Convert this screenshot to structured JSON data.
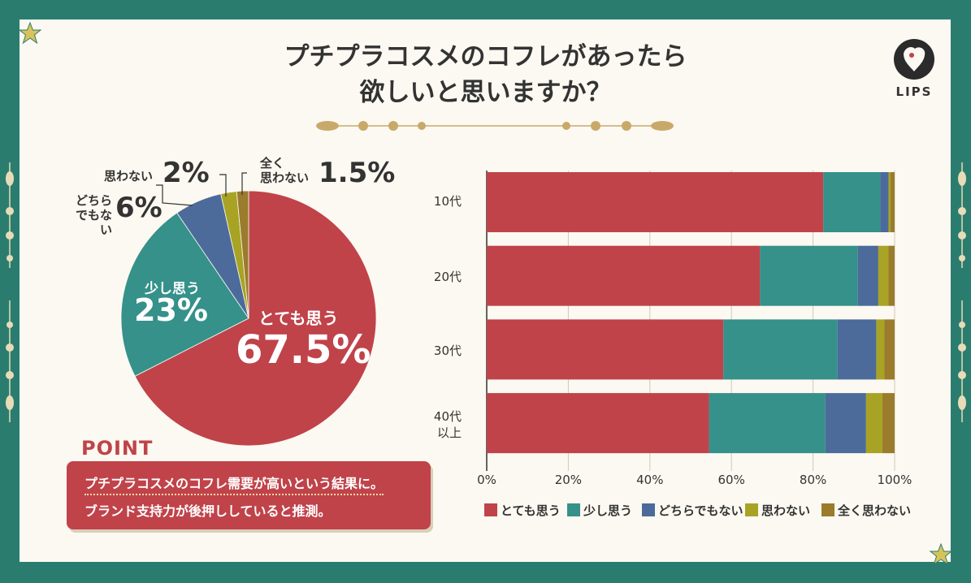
{
  "title": {
    "line1": "プチプラコスメのコフレがあったら",
    "line2": "欲しいと思いますか？"
  },
  "brand": {
    "logo_text": "LIPS"
  },
  "colors": {
    "frame": "#2a7d6e",
    "bg": "#fbf9f1",
    "very": "#c0434a",
    "little": "#35918a",
    "neutral": "#4c6b9b",
    "no": "#a8a324",
    "never": "#9b7b2c"
  },
  "pie_labels": {
    "very_label": "とても思う",
    "very_pct": "67.5%",
    "little_label": "少し思う",
    "little_pct": "23%",
    "neutral_label1": "どちら",
    "neutral_label2": "でもない",
    "neutral_pct": "6%",
    "no_label": "思わない",
    "no_pct": "2%",
    "never_label1": "全く",
    "never_label2": "思わない",
    "never_pct": "1.5%"
  },
  "point": {
    "title": "POINT",
    "line1": "プチプラコスメのコフレ需要が高いという結果に。",
    "line2": "ブランド支持力が後押ししていると推測。"
  },
  "bar_labels": {
    "g1": "10代",
    "g2": "20代",
    "g3a": "30代",
    "g4a": "40代",
    "g4b": "以上"
  },
  "chart_data": [
    {
      "type": "pie",
      "categories": [
        "とても思う",
        "少し思う",
        "どちらでもない",
        "思わない",
        "全く思わない"
      ],
      "values": [
        67.5,
        23,
        6,
        2,
        1.5
      ],
      "title": ""
    },
    {
      "type": "bar",
      "orientation": "horizontal",
      "stacked": true,
      "categories": [
        "10代",
        "20代",
        "30代",
        "40代以上"
      ],
      "series": [
        {
          "name": "とても思う",
          "values": [
            82.5,
            67,
            58,
            54.5
          ]
        },
        {
          "name": "少し思う",
          "values": [
            14,
            24,
            28,
            28.5
          ]
        },
        {
          "name": "どちらでもない",
          "values": [
            2,
            5,
            9.5,
            10
          ]
        },
        {
          "name": "思わない",
          "values": [
            0.5,
            2.5,
            2,
            4
          ]
        },
        {
          "name": "全く思わない",
          "values": [
            1,
            1.5,
            2.5,
            3
          ]
        }
      ],
      "xlim": [
        0,
        100
      ],
      "xticks": [
        "0%",
        "20%",
        "40%",
        "60%",
        "80%",
        "100%"
      ],
      "legend": "bottom"
    }
  ]
}
